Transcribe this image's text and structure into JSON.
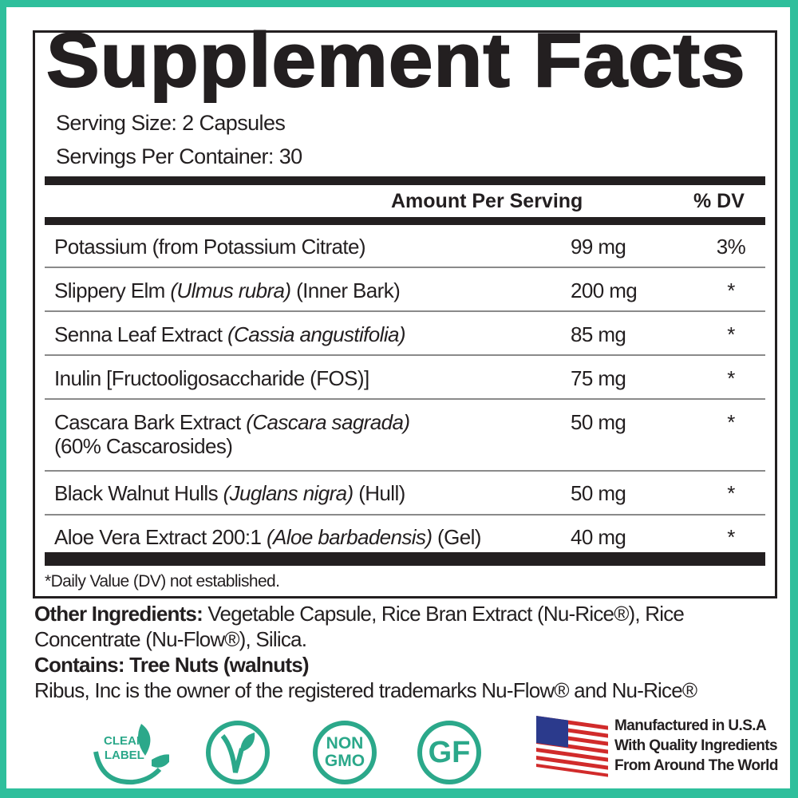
{
  "title": "Supplement Facts",
  "serving_size": "Serving Size: 2 Capsules",
  "servings_per_container": "Servings Per Container: 30",
  "header": {
    "amount": "Amount Per Serving",
    "dv": "% DV"
  },
  "rows": [
    {
      "name": "Potassium (from Potassium Citrate)",
      "latin": "",
      "suffix": "",
      "amount": "99 mg",
      "dv": "3%"
    },
    {
      "name": "Slippery Elm ",
      "latin": "(Ulmus rubra)",
      "suffix": " (Inner Bark)",
      "amount": "200 mg",
      "dv": "*"
    },
    {
      "name": "Senna Leaf Extract ",
      "latin": "(Cassia angustifolia)",
      "suffix": "",
      "amount": "85 mg",
      "dv": "*"
    },
    {
      "name": "Inulin [Fructooligosaccharide (FOS)]",
      "latin": "",
      "suffix": "",
      "amount": "75 mg",
      "dv": "*"
    },
    {
      "name": "Cascara Bark Extract ",
      "latin": "(Cascara sagrada)",
      "suffix": "",
      "line2": "(60% Cascarosides)",
      "amount": "50 mg",
      "dv": "*"
    },
    {
      "name": "Black Walnut Hulls ",
      "latin": "(Juglans nigra)",
      "suffix": " (Hull)",
      "amount": "50 mg",
      "dv": "*"
    },
    {
      "name": "Aloe Vera Extract 200:1 ",
      "latin": "(Aloe barbadensis)",
      "suffix": " (Gel)",
      "amount": "40 mg",
      "dv": "*"
    }
  ],
  "footnote": "*Daily Value (DV) not established.",
  "other_label": "Other Ingredients:",
  "other_text": " Vegetable Capsule, Rice Bran Extract (Nu-Rice®), Rice",
  "other_text2": "Concentrate (Nu-Flow®), Silica.",
  "contains": "Contains: Tree Nuts (walnuts)",
  "trademark": "Ribus, Inc is the owner of the registered trademarks Nu-Flow® and Nu-Rice®",
  "badges": {
    "clean": [
      "CLEAN",
      "LABEL"
    ],
    "vegan_icon": "v-leaf-icon",
    "nongmo": [
      "NON",
      "GMO"
    ],
    "gf": "GF"
  },
  "usa": [
    "Manufactured in U.S.A",
    "With Quality Ingredients",
    "From Around The World"
  ],
  "colors": {
    "border": "#2fbf9c",
    "badge": "#2ba88a",
    "ink": "#231f20"
  }
}
